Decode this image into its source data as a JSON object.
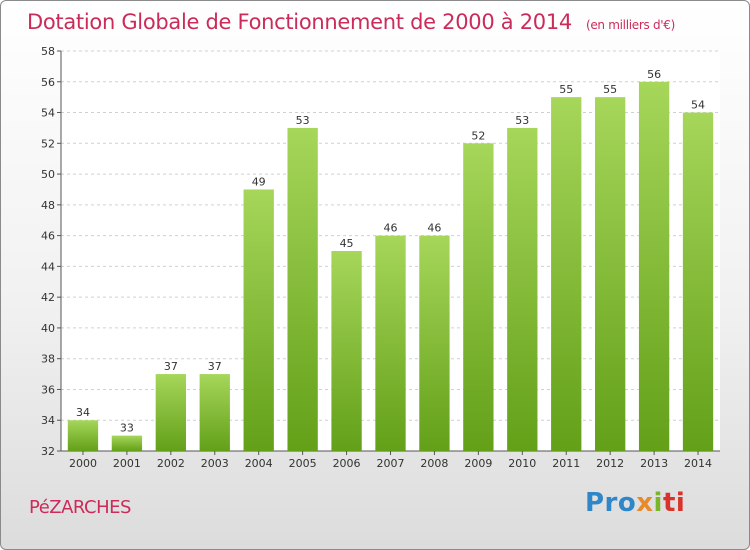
{
  "chart_data": {
    "type": "bar",
    "title": "Dotation Globale de Fonctionnement de 2000 à 2014",
    "subtitle": "(en milliers d'€)",
    "categories": [
      "2000",
      "2001",
      "2002",
      "2003",
      "2004",
      "2005",
      "2006",
      "2007",
      "2008",
      "2009",
      "2010",
      "2011",
      "2012",
      "2013",
      "2014"
    ],
    "values": [
      34,
      33,
      37,
      37,
      49,
      53,
      45,
      46,
      46,
      52,
      53,
      55,
      55,
      56,
      54
    ],
    "ylim": [
      32,
      58
    ],
    "yticks": [
      32,
      34,
      36,
      38,
      40,
      42,
      44,
      46,
      48,
      50,
      52,
      54,
      56,
      58
    ],
    "grid": true,
    "bar_color": "#8cc63f",
    "xlabel": "",
    "ylabel": ""
  },
  "footer": {
    "place": "PéZARCHES",
    "logo": [
      "Pro",
      "x",
      "i",
      "ti"
    ]
  },
  "colors": {
    "title": "#cc2b5a",
    "bar_top": "#a6d65a",
    "bar_bottom": "#63a018"
  }
}
